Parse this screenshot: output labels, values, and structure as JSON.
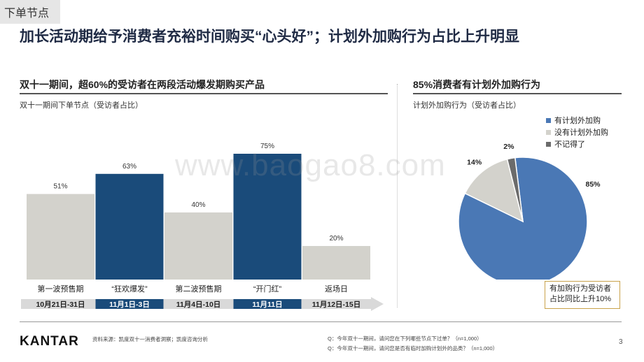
{
  "section_tag": "下单节点",
  "headline": "加长活动期给予消费者充裕时间购买“心头好”；计划外加购行为占比上升明显",
  "left": {
    "title": "双十一期间，超60%的受访者在两段活动爆发期购买产品",
    "subtitle": "双十一期间下单节点（受访者占比）"
  },
  "right": {
    "title": "85%消费者有计划外加购行为",
    "subtitle": "计划外加购行为（受访者占比）",
    "callout_line1": "有加购行为受访者",
    "callout_line2": "占比同比上升10%"
  },
  "colors": {
    "dark_blue": "#1a4b7a",
    "gray_bar": "#d3d2cc",
    "pie_blue": "#4a78b5",
    "pie_dark": "#6b6b6b",
    "timeline_gray": "#d9d9d9"
  },
  "chart_data": [
    {
      "type": "bar",
      "title": "双十一期间下单节点（受访者占比）",
      "categories": [
        "第一波预售期",
        "“狂欢爆发”",
        "第二波预售期",
        "“开门红”",
        "返场日"
      ],
      "values": [
        51,
        63,
        40,
        75,
        20
      ],
      "data_labels": [
        "51%",
        "63%",
        "40%",
        "75%",
        "20%"
      ],
      "highlight": [
        false,
        true,
        false,
        true,
        false
      ],
      "date_ranges": [
        "10月21日-31日",
        "11月1日-3日",
        "11月4日-10日",
        "11月11日",
        "11月12日-15日"
      ],
      "ylim": [
        0,
        100
      ]
    },
    {
      "type": "pie",
      "title": "计划外加购行为（受访者占比）",
      "labels": [
        "有计划外加购",
        "没有计划外加购",
        "不记得了"
      ],
      "values": [
        85,
        14,
        2
      ],
      "data_labels": [
        "85%",
        "14%",
        "2%"
      ],
      "legend_position": "top-right"
    }
  ],
  "footer": {
    "brand": "KANTAR",
    "source": "资料来源：凯度双十一消费者洞察；凯度咨询分析",
    "q1": "Q：今年双十一期间，请问您在下列哪些节点下过单？（n=1,000）",
    "q2": "Q：今年双十一期间，请问您是否有临时加购计划外的品类？（n=1,000）",
    "page": "3"
  },
  "watermark": "www.baogao8.com"
}
